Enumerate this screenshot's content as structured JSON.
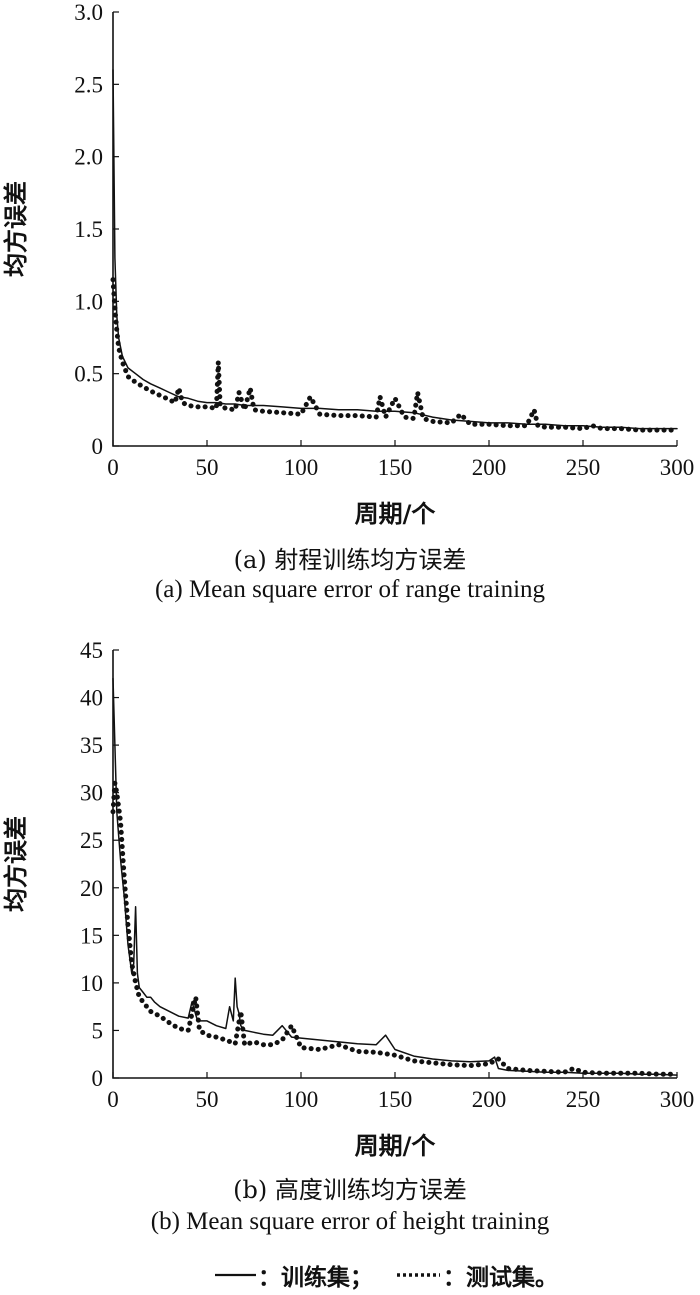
{
  "chart_data": [
    {
      "type": "line",
      "xlabel": "周期/个",
      "ylabel": "均方误差",
      "xlim": [
        0,
        300
      ],
      "ylim": [
        0,
        3.0
      ],
      "xticks": [
        "0",
        "50",
        "100",
        "150",
        "200",
        "250",
        "300"
      ],
      "yticks": [
        "0",
        "0.5",
        "1.0",
        "1.5",
        "2.0",
        "2.5",
        "3.0"
      ],
      "caption_cn": "(a) 射程训练均方误差",
      "caption_en": "(a) Mean square error of range training",
      "series": [
        {
          "name": "训练集",
          "style": "solid",
          "x": [
            0,
            1,
            2,
            3,
            5,
            8,
            12,
            16,
            20,
            25,
            30,
            35,
            40,
            45,
            50,
            55,
            60,
            65,
            70,
            75,
            80,
            90,
            100,
            110,
            120,
            130,
            140,
            150,
            160,
            170,
            180,
            190,
            200,
            210,
            220,
            230,
            240,
            250,
            260,
            270,
            280,
            290,
            300
          ],
          "y": [
            2.6,
            1.3,
            0.9,
            0.75,
            0.62,
            0.54,
            0.5,
            0.46,
            0.43,
            0.4,
            0.37,
            0.34,
            0.33,
            0.31,
            0.3,
            0.3,
            0.29,
            0.29,
            0.28,
            0.28,
            0.28,
            0.27,
            0.26,
            0.26,
            0.25,
            0.25,
            0.24,
            0.24,
            0.23,
            0.2,
            0.18,
            0.17,
            0.16,
            0.16,
            0.15,
            0.15,
            0.14,
            0.14,
            0.13,
            0.13,
            0.12,
            0.12,
            0.12
          ]
        },
        {
          "name": "测试集",
          "style": "dotted",
          "x": [
            0,
            1,
            2,
            3,
            5,
            8,
            12,
            16,
            20,
            25,
            30,
            33,
            35,
            37,
            40,
            45,
            50,
            55,
            56,
            57,
            60,
            65,
            67,
            70,
            73,
            75,
            80,
            90,
            100,
            105,
            110,
            120,
            130,
            140,
            142,
            145,
            150,
            155,
            160,
            162,
            165,
            170,
            180,
            185,
            190,
            200,
            210,
            220,
            224,
            226,
            230,
            240,
            250,
            255,
            260,
            270,
            280,
            290,
            300
          ],
          "y": [
            1.15,
            0.95,
            0.8,
            0.68,
            0.58,
            0.48,
            0.44,
            0.41,
            0.38,
            0.35,
            0.32,
            0.3,
            0.4,
            0.3,
            0.28,
            0.27,
            0.27,
            0.26,
            0.58,
            0.28,
            0.26,
            0.25,
            0.37,
            0.25,
            0.4,
            0.25,
            0.24,
            0.23,
            0.22,
            0.34,
            0.22,
            0.21,
            0.21,
            0.2,
            0.34,
            0.2,
            0.33,
            0.2,
            0.19,
            0.37,
            0.19,
            0.17,
            0.16,
            0.22,
            0.15,
            0.15,
            0.14,
            0.14,
            0.25,
            0.14,
            0.13,
            0.13,
            0.12,
            0.14,
            0.12,
            0.12,
            0.11,
            0.11,
            0.11
          ]
        }
      ]
    },
    {
      "type": "line",
      "xlabel": "周期/个",
      "ylabel": "均方误差",
      "xlim": [
        0,
        300
      ],
      "ylim": [
        0,
        45
      ],
      "xticks": [
        "0",
        "50",
        "100",
        "150",
        "200",
        "250",
        "300"
      ],
      "yticks": [
        "0",
        "5",
        "10",
        "15",
        "20",
        "25",
        "30",
        "35",
        "40",
        "45"
      ],
      "caption_cn": "(b) 高度训练均方误差",
      "caption_en": "(b) Mean square error of height training",
      "series": [
        {
          "name": "训练集",
          "style": "solid",
          "x": [
            0,
            1,
            2,
            4,
            6,
            8,
            10,
            11,
            12,
            13,
            14,
            16,
            18,
            20,
            22,
            25,
            30,
            35,
            40,
            42,
            45,
            50,
            55,
            60,
            62,
            64,
            65,
            66,
            67,
            68,
            70,
            75,
            80,
            85,
            90,
            95,
            100,
            110,
            120,
            130,
            140,
            145,
            150,
            160,
            170,
            180,
            190,
            200,
            203,
            205,
            210,
            220,
            230,
            240,
            250,
            260,
            270,
            280,
            290,
            300
          ],
          "y": [
            42,
            35,
            28,
            23,
            19,
            14,
            11,
            12,
            18,
            11,
            9.5,
            9,
            8.5,
            8.5,
            8,
            7.5,
            7,
            6.5,
            6.3,
            8,
            6,
            6,
            5.5,
            5.2,
            7.5,
            6,
            10.5,
            7.5,
            6.8,
            5.5,
            5,
            4.8,
            4.6,
            4.5,
            5.5,
            4.3,
            4.2,
            4,
            3.8,
            3.6,
            3.5,
            4.5,
            3,
            2.3,
            2,
            1.8,
            1.7,
            1.8,
            2.2,
            1,
            0.8,
            0.7,
            0.6,
            0.6,
            0.5,
            0.5,
            0.5,
            0.4,
            0.4,
            0.3
          ]
        },
        {
          "name": "测试集",
          "style": "dotted",
          "x": [
            0,
            1,
            2,
            4,
            6,
            8,
            10,
            12,
            14,
            16,
            18,
            20,
            25,
            30,
            35,
            40,
            44,
            46,
            50,
            55,
            60,
            65,
            68,
            70,
            75,
            80,
            85,
            90,
            95,
            100,
            110,
            120,
            130,
            140,
            150,
            160,
            170,
            180,
            190,
            200,
            205,
            210,
            220,
            230,
            240,
            245,
            250,
            260,
            270,
            280,
            290,
            300
          ],
          "y": [
            28,
            31,
            30,
            27,
            21,
            16,
            12,
            10,
            8.5,
            8,
            7.5,
            7,
            6.5,
            5.8,
            5.2,
            5,
            8.5,
            5,
            4.5,
            4.3,
            4,
            3.6,
            7,
            3.5,
            3.8,
            3.5,
            3.5,
            4,
            5.5,
            3.2,
            3,
            3.5,
            2.8,
            2.7,
            2.4,
            1.8,
            1.6,
            1.4,
            1.3,
            1.5,
            2,
            1,
            0.8,
            0.7,
            0.6,
            1,
            0.6,
            0.5,
            0.5,
            0.5,
            0.4,
            0.4
          ]
        }
      ]
    }
  ],
  "legend": {
    "train_label": "：训练集；",
    "test_label": "：测试集。"
  }
}
